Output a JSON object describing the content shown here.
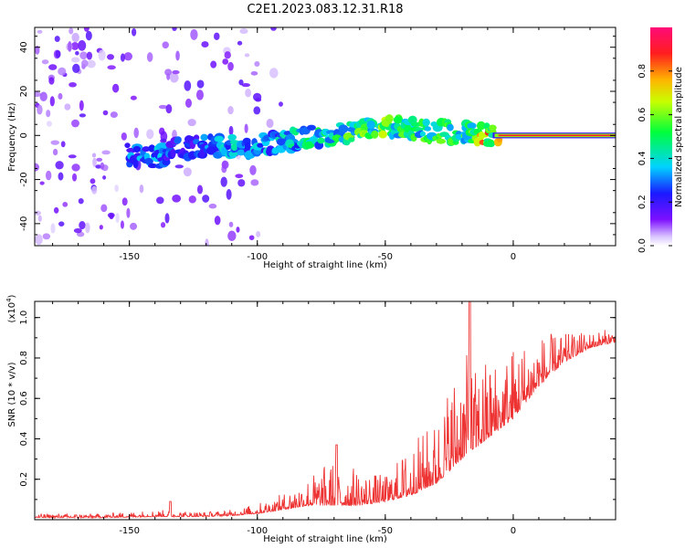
{
  "title": "C2E1.2023.083.12.31.R18",
  "colorbar": {
    "label": "Normalized spectral amplitude",
    "ticks": [
      "0.0",
      "0.2",
      "0.4",
      "0.6",
      "0.8"
    ],
    "tick_values": [
      0.0,
      0.2,
      0.4,
      0.6,
      0.8
    ],
    "range": [
      0,
      1
    ]
  },
  "chart_data": [
    {
      "type": "heatmap",
      "xlabel": "Height of straight line (km)",
      "ylabel": "Frequency (Hz)",
      "xlim": [
        -187,
        40
      ],
      "ylim": [
        -50,
        49
      ],
      "x_ticks": [
        -150,
        -100,
        -50,
        0
      ],
      "x_tick_labels": [
        "-150",
        "-100",
        "-50",
        "0"
      ],
      "y_ticks": [
        -40,
        -20,
        0,
        20,
        40
      ],
      "y_tick_labels": [
        "-40",
        "-20",
        "0",
        "20",
        "40"
      ],
      "ridge": {
        "x": [
          -150,
          -140,
          -130,
          -120,
          -110,
          -100,
          -90,
          -80,
          -70,
          -60,
          -50,
          -40,
          -30,
          -20,
          -10,
          -5,
          0,
          10,
          20,
          30,
          40
        ],
        "frequency": [
          -9,
          -10,
          -6,
          -5,
          -5,
          -5,
          -3,
          -1,
          0,
          2,
          4,
          3,
          2,
          1,
          0,
          -1,
          0,
          0,
          0,
          0,
          0
        ],
        "amplitude": [
          0.3,
          0.35,
          0.25,
          0.3,
          0.4,
          0.35,
          0.4,
          0.45,
          0.5,
          0.55,
          0.6,
          0.5,
          0.55,
          0.5,
          0.8,
          0.75,
          0.9,
          0.95,
          0.95,
          0.95,
          0.95
        ]
      }
    },
    {
      "type": "line",
      "xlabel": "Height of straight line (km)",
      "ylabel": "SNR (10 * v/v)",
      "y_multiplier": "(x10⁴)",
      "y_multiplier_base": "(x10",
      "y_multiplier_exp": "4",
      "y_multiplier_close": ")",
      "xlim": [
        -187,
        40
      ],
      "ylim": [
        0,
        1.08
      ],
      "x_ticks": [
        -150,
        -100,
        -50,
        0
      ],
      "x_tick_labels": [
        "-150",
        "-100",
        "-50",
        "0"
      ],
      "y_ticks": [
        0.2,
        0.4,
        0.6,
        0.8,
        1.0
      ],
      "y_tick_labels": [
        "0.2",
        "0.4",
        "0.6",
        "0.8",
        "1.0"
      ],
      "color": "#ee3333",
      "envelope": {
        "x": [
          -187,
          -160,
          -140,
          -120,
          -110,
          -100,
          -90,
          -80,
          -70,
          -60,
          -50,
          -40,
          -30,
          -25,
          -20,
          -15,
          -10,
          -5,
          0,
          5,
          10,
          20,
          30,
          40
        ],
        "base": [
          0.01,
          0.01,
          0.015,
          0.015,
          0.02,
          0.03,
          0.05,
          0.07,
          0.07,
          0.07,
          0.09,
          0.12,
          0.18,
          0.24,
          0.3,
          0.35,
          0.4,
          0.45,
          0.5,
          0.58,
          0.66,
          0.78,
          0.85,
          0.88
        ],
        "peak": [
          0.03,
          0.03,
          0.05,
          0.04,
          0.05,
          0.08,
          0.13,
          0.22,
          0.3,
          0.25,
          0.22,
          0.38,
          0.5,
          0.7,
          0.85,
          0.75,
          0.82,
          0.8,
          0.88,
          0.9,
          0.92,
          0.92,
          0.93,
          0.95
        ]
      },
      "notable_peaks": [
        {
          "x": -134,
          "y": 0.09
        },
        {
          "x": -69,
          "y": 0.37
        },
        {
          "x": -17,
          "y": 1.08
        }
      ]
    }
  ]
}
